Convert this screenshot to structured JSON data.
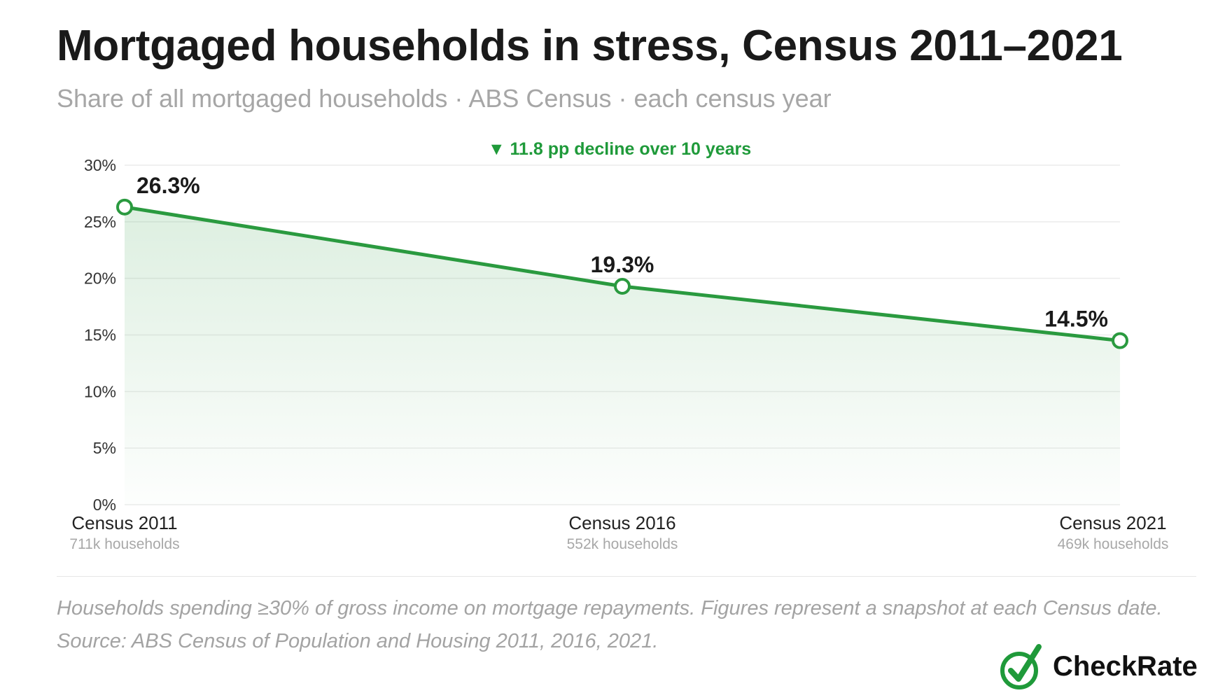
{
  "header": {
    "title": "Mortgaged households in stress, Census 2011–2021",
    "subtitle": "Share of all mortgaged households · ABS Census · each census year"
  },
  "annotation": {
    "text": "▼ 11.8 pp decline over 10 years",
    "color": "#1f9a3a"
  },
  "chart_data": {
    "type": "area",
    "categories": [
      "Census 2011",
      "Census 2016",
      "Census 2021"
    ],
    "category_sublabels": [
      "711k households",
      "552k households",
      "469k households"
    ],
    "values": [
      26.3,
      19.3,
      14.5
    ],
    "data_labels": [
      "26.3%",
      "19.3%",
      "14.5%"
    ],
    "y_ticks": [
      "0%",
      "5%",
      "10%",
      "15%",
      "20%",
      "25%",
      "30%"
    ],
    "y_tick_values": [
      0,
      5,
      10,
      15,
      20,
      25,
      30
    ],
    "ylim": [
      0,
      30
    ],
    "grid": true,
    "line_color": "#2a9a3f",
    "fill_color": "#2a9a3f"
  },
  "footnote": "Households spending ≥30% of gross income on mortgage repayments. Figures represent a snapshot at each Census date. Source: ABS Census of Population and Housing 2011, 2016, 2021.",
  "brand": {
    "name": "CheckRate",
    "mark_color": "#1f9a3a"
  }
}
